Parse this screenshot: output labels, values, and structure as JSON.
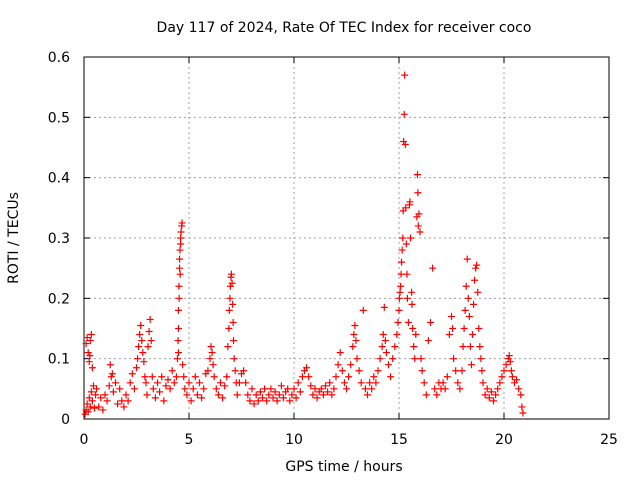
{
  "chart_data": {
    "type": "scatter",
    "title": "Day 117 of 2024, Rate Of TEC Index for receiver coco",
    "xlabel": "GPS time / hours",
    "ylabel": "ROTI / TECUs",
    "xlim": [
      0,
      25
    ],
    "ylim": [
      0,
      0.6
    ],
    "xticks": [
      "0",
      "5",
      "10",
      "15",
      "20",
      "25"
    ],
    "yticks": [
      "0",
      "0.1",
      "0.2",
      "0.3",
      "0.4",
      "0.5",
      "0.6"
    ],
    "grid": true,
    "marker": "plus",
    "color": "#ff0000",
    "series": [
      {
        "points": [
          [
            0.05,
            0.008
          ],
          [
            0.1,
            0.015
          ],
          [
            0.15,
            0.025
          ],
          [
            0.2,
            0.012
          ],
          [
            0.25,
            0.035
          ],
          [
            0.3,
            0.02
          ],
          [
            0.35,
            0.045
          ],
          [
            0.4,
            0.03
          ],
          [
            0.45,
            0.055
          ],
          [
            0.5,
            0.018
          ],
          [
            0.55,
            0.04
          ],
          [
            0.6,
            0.05
          ],
          [
            0.1,
            0.125
          ],
          [
            0.15,
            0.135
          ],
          [
            0.2,
            0.11
          ],
          [
            0.25,
            0.095
          ],
          [
            0.3,
            0.13
          ],
          [
            0.35,
            0.14
          ],
          [
            0.4,
            0.085
          ],
          [
            0.28,
            0.105
          ],
          [
            0.7,
            0.02
          ],
          [
            0.8,
            0.035
          ],
          [
            0.9,
            0.015
          ],
          [
            1.0,
            0.04
          ],
          [
            1.1,
            0.03
          ],
          [
            1.2,
            0.055
          ],
          [
            1.3,
            0.07
          ],
          [
            1.4,
            0.045
          ],
          [
            1.5,
            0.06
          ],
          [
            1.6,
            0.025
          ],
          [
            1.7,
            0.05
          ],
          [
            1.8,
            0.03
          ],
          [
            1.9,
            0.02
          ],
          [
            2.0,
            0.04
          ],
          [
            1.25,
            0.09
          ],
          [
            1.35,
            0.075
          ],
          [
            2.1,
            0.03
          ],
          [
            2.2,
            0.06
          ],
          [
            2.3,
            0.075
          ],
          [
            2.4,
            0.05
          ],
          [
            2.5,
            0.085
          ],
          [
            2.55,
            0.1
          ],
          [
            2.6,
            0.12
          ],
          [
            2.65,
            0.14
          ],
          [
            2.7,
            0.155
          ],
          [
            2.75,
            0.13
          ],
          [
            2.8,
            0.11
          ],
          [
            2.85,
            0.095
          ],
          [
            2.9,
            0.07
          ],
          [
            2.95,
            0.06
          ],
          [
            3.0,
            0.04
          ],
          [
            3.05,
            0.12
          ],
          [
            3.1,
            0.145
          ],
          [
            3.15,
            0.165
          ],
          [
            3.2,
            0.13
          ],
          [
            3.25,
            0.07
          ],
          [
            3.3,
            0.05
          ],
          [
            3.4,
            0.035
          ],
          [
            3.5,
            0.06
          ],
          [
            3.6,
            0.045
          ],
          [
            3.7,
            0.07
          ],
          [
            3.8,
            0.03
          ],
          [
            3.9,
            0.055
          ],
          [
            4.0,
            0.065
          ],
          [
            4.1,
            0.05
          ],
          [
            4.2,
            0.08
          ],
          [
            4.3,
            0.06
          ],
          [
            4.4,
            0.07
          ],
          [
            4.45,
            0.1
          ],
          [
            4.5,
            0.18
          ],
          [
            4.52,
            0.22
          ],
          [
            4.55,
            0.25
          ],
          [
            4.57,
            0.28
          ],
          [
            4.6,
            0.3
          ],
          [
            4.62,
            0.31
          ],
          [
            4.65,
            0.32
          ],
          [
            4.67,
            0.325
          ],
          [
            4.58,
            0.24
          ],
          [
            4.53,
            0.2
          ],
          [
            4.5,
            0.15
          ],
          [
            4.48,
            0.13
          ],
          [
            4.6,
            0.29
          ],
          [
            4.55,
            0.265
          ],
          [
            4.5,
            0.11
          ],
          [
            4.7,
            0.09
          ],
          [
            4.75,
            0.07
          ],
          [
            4.8,
            0.05
          ],
          [
            4.9,
            0.04
          ],
          [
            5.0,
            0.06
          ],
          [
            5.1,
            0.03
          ],
          [
            5.2,
            0.05
          ],
          [
            5.3,
            0.07
          ],
          [
            5.4,
            0.04
          ],
          [
            5.5,
            0.06
          ],
          [
            5.6,
            0.035
          ],
          [
            5.7,
            0.05
          ],
          [
            5.8,
            0.075
          ],
          [
            5.9,
            0.08
          ],
          [
            6.0,
            0.1
          ],
          [
            6.05,
            0.12
          ],
          [
            6.1,
            0.11
          ],
          [
            6.15,
            0.09
          ],
          [
            6.2,
            0.07
          ],
          [
            6.3,
            0.05
          ],
          [
            6.4,
            0.04
          ],
          [
            6.5,
            0.06
          ],
          [
            6.6,
            0.035
          ],
          [
            6.7,
            0.055
          ],
          [
            6.8,
            0.07
          ],
          [
            6.85,
            0.12
          ],
          [
            6.9,
            0.15
          ],
          [
            6.92,
            0.18
          ],
          [
            6.95,
            0.2
          ],
          [
            6.97,
            0.22
          ],
          [
            7.0,
            0.235
          ],
          [
            7.02,
            0.24
          ],
          [
            7.05,
            0.225
          ],
          [
            7.08,
            0.19
          ],
          [
            7.1,
            0.16
          ],
          [
            7.12,
            0.13
          ],
          [
            7.15,
            0.1
          ],
          [
            7.2,
            0.08
          ],
          [
            7.25,
            0.06
          ],
          [
            7.3,
            0.04
          ],
          [
            7.4,
            0.06
          ],
          [
            7.5,
            0.075
          ],
          [
            7.6,
            0.08
          ],
          [
            7.7,
            0.06
          ],
          [
            7.8,
            0.04
          ],
          [
            7.9,
            0.03
          ],
          [
            8.0,
            0.05
          ],
          [
            8.1,
            0.025
          ],
          [
            8.2,
            0.04
          ],
          [
            8.3,
            0.03
          ],
          [
            8.4,
            0.045
          ],
          [
            8.5,
            0.035
          ],
          [
            8.6,
            0.05
          ],
          [
            8.7,
            0.03
          ],
          [
            8.8,
            0.04
          ],
          [
            8.9,
            0.05
          ],
          [
            9.0,
            0.035
          ],
          [
            9.1,
            0.045
          ],
          [
            9.2,
            0.03
          ],
          [
            9.3,
            0.04
          ],
          [
            9.4,
            0.055
          ],
          [
            9.5,
            0.035
          ],
          [
            9.6,
            0.045
          ],
          [
            9.7,
            0.05
          ],
          [
            9.8,
            0.03
          ],
          [
            9.9,
            0.04
          ],
          [
            10.0,
            0.05
          ],
          [
            10.1,
            0.035
          ],
          [
            10.2,
            0.06
          ],
          [
            10.3,
            0.045
          ],
          [
            10.4,
            0.07
          ],
          [
            10.5,
            0.08
          ],
          [
            10.6,
            0.085
          ],
          [
            10.7,
            0.07
          ],
          [
            10.8,
            0.055
          ],
          [
            10.9,
            0.04
          ],
          [
            11.0,
            0.05
          ],
          [
            11.1,
            0.035
          ],
          [
            11.2,
            0.045
          ],
          [
            11.3,
            0.05
          ],
          [
            11.4,
            0.04
          ],
          [
            11.5,
            0.055
          ],
          [
            11.6,
            0.045
          ],
          [
            11.7,
            0.06
          ],
          [
            11.8,
            0.04
          ],
          [
            11.9,
            0.05
          ],
          [
            12.0,
            0.07
          ],
          [
            12.1,
            0.09
          ],
          [
            12.2,
            0.11
          ],
          [
            12.3,
            0.08
          ],
          [
            12.4,
            0.06
          ],
          [
            12.5,
            0.05
          ],
          [
            12.6,
            0.07
          ],
          [
            12.7,
            0.09
          ],
          [
            12.8,
            0.12
          ],
          [
            12.85,
            0.14
          ],
          [
            12.9,
            0.155
          ],
          [
            12.95,
            0.13
          ],
          [
            13.0,
            0.1
          ],
          [
            13.1,
            0.08
          ],
          [
            13.2,
            0.06
          ],
          [
            13.3,
            0.18
          ],
          [
            13.4,
            0.05
          ],
          [
            13.5,
            0.04
          ],
          [
            13.6,
            0.06
          ],
          [
            13.7,
            0.05
          ],
          [
            13.8,
            0.07
          ],
          [
            13.9,
            0.06
          ],
          [
            14.0,
            0.08
          ],
          [
            14.1,
            0.1
          ],
          [
            14.2,
            0.12
          ],
          [
            14.25,
            0.14
          ],
          [
            14.3,
            0.185
          ],
          [
            14.35,
            0.13
          ],
          [
            14.4,
            0.11
          ],
          [
            14.5,
            0.09
          ],
          [
            14.6,
            0.07
          ],
          [
            14.7,
            0.1
          ],
          [
            14.8,
            0.12
          ],
          [
            14.9,
            0.14
          ],
          [
            14.95,
            0.16
          ],
          [
            15.0,
            0.18
          ],
          [
            15.02,
            0.2
          ],
          [
            15.05,
            0.21
          ],
          [
            15.08,
            0.22
          ],
          [
            15.1,
            0.24
          ],
          [
            15.12,
            0.26
          ],
          [
            15.15,
            0.28
          ],
          [
            15.18,
            0.3
          ],
          [
            15.2,
            0.345
          ],
          [
            15.22,
            0.46
          ],
          [
            15.25,
            0.505
          ],
          [
            15.27,
            0.57
          ],
          [
            15.3,
            0.455
          ],
          [
            15.32,
            0.35
          ],
          [
            15.35,
            0.29
          ],
          [
            15.38,
            0.24
          ],
          [
            15.4,
            0.2
          ],
          [
            15.45,
            0.16
          ],
          [
            15.5,
            0.355
          ],
          [
            15.52,
            0.36
          ],
          [
            15.55,
            0.3
          ],
          [
            15.6,
            0.21
          ],
          [
            15.62,
            0.19
          ],
          [
            15.65,
            0.15
          ],
          [
            15.7,
            0.12
          ],
          [
            15.75,
            0.1
          ],
          [
            15.8,
            0.14
          ],
          [
            15.85,
            0.335
          ],
          [
            15.88,
            0.405
          ],
          [
            15.9,
            0.375
          ],
          [
            15.92,
            0.32
          ],
          [
            15.95,
            0.34
          ],
          [
            16.0,
            0.31
          ],
          [
            16.05,
            0.1
          ],
          [
            16.1,
            0.08
          ],
          [
            16.2,
            0.06
          ],
          [
            16.3,
            0.04
          ],
          [
            16.4,
            0.13
          ],
          [
            16.5,
            0.16
          ],
          [
            16.6,
            0.25
          ],
          [
            16.7,
            0.05
          ],
          [
            16.8,
            0.04
          ],
          [
            16.9,
            0.06
          ],
          [
            17.0,
            0.05
          ],
          [
            17.1,
            0.06
          ],
          [
            17.2,
            0.05
          ],
          [
            17.3,
            0.07
          ],
          [
            17.4,
            0.14
          ],
          [
            17.5,
            0.17
          ],
          [
            17.55,
            0.15
          ],
          [
            17.6,
            0.1
          ],
          [
            17.7,
            0.08
          ],
          [
            17.8,
            0.06
          ],
          [
            17.9,
            0.05
          ],
          [
            18.0,
            0.08
          ],
          [
            18.05,
            0.12
          ],
          [
            18.1,
            0.15
          ],
          [
            18.15,
            0.18
          ],
          [
            18.2,
            0.22
          ],
          [
            18.25,
            0.265
          ],
          [
            18.3,
            0.2
          ],
          [
            18.35,
            0.17
          ],
          [
            18.4,
            0.12
          ],
          [
            18.45,
            0.09
          ],
          [
            18.5,
            0.14
          ],
          [
            18.55,
            0.19
          ],
          [
            18.6,
            0.23
          ],
          [
            18.65,
            0.25
          ],
          [
            18.7,
            0.255
          ],
          [
            18.75,
            0.21
          ],
          [
            18.8,
            0.15
          ],
          [
            18.85,
            0.12
          ],
          [
            18.9,
            0.1
          ],
          [
            18.95,
            0.08
          ],
          [
            19.0,
            0.06
          ],
          [
            19.1,
            0.04
          ],
          [
            19.2,
            0.05
          ],
          [
            19.3,
            0.035
          ],
          [
            19.4,
            0.045
          ],
          [
            19.5,
            0.03
          ],
          [
            19.6,
            0.04
          ],
          [
            19.7,
            0.05
          ],
          [
            19.8,
            0.06
          ],
          [
            19.9,
            0.07
          ],
          [
            20.0,
            0.08
          ],
          [
            20.1,
            0.09
          ],
          [
            20.2,
            0.1
          ],
          [
            20.25,
            0.105
          ],
          [
            20.3,
            0.095
          ],
          [
            20.35,
            0.08
          ],
          [
            20.4,
            0.07
          ],
          [
            20.5,
            0.06
          ],
          [
            20.6,
            0.065
          ],
          [
            20.7,
            0.05
          ],
          [
            20.8,
            0.04
          ],
          [
            20.85,
            0.02
          ],
          [
            20.9,
            0.01
          ]
        ]
      }
    ]
  }
}
